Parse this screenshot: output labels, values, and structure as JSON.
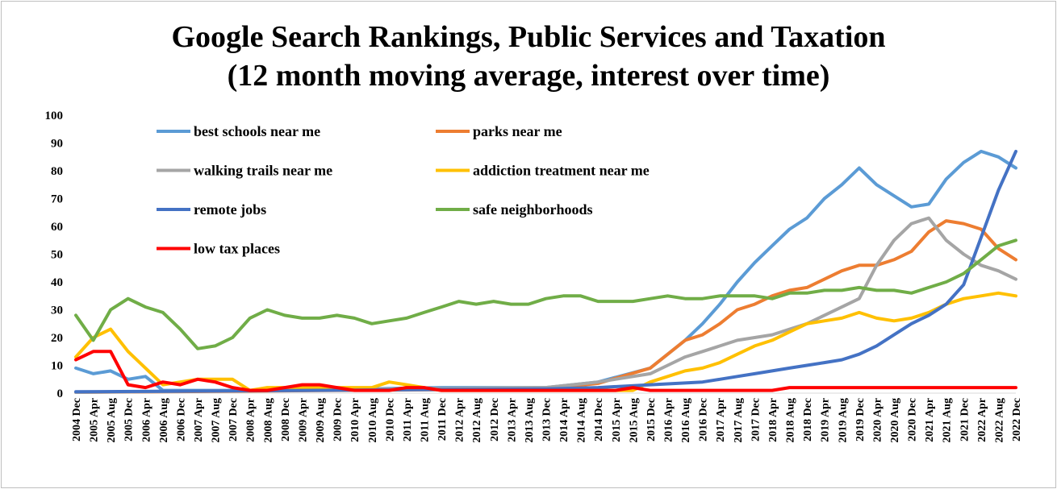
{
  "chart_data": {
    "type": "line",
    "title": "Google Search Rankings, Public Services and Taxation",
    "subtitle": "(12 month moving average, interest over time)",
    "xlabel": "",
    "ylabel": "",
    "ylim": [
      0,
      100
    ],
    "y_ticks": [
      0,
      10,
      20,
      30,
      40,
      50,
      60,
      70,
      80,
      90,
      100
    ],
    "grid": false,
    "legend_position": "top-left inside plot",
    "x_start": "2004 Dec",
    "x_end": "2022 Dec",
    "x_step_months": 4,
    "x_tick_labels": [
      "2004 Dec",
      "2005 Apr",
      "2005 Aug",
      "2005 Dec",
      "2006 Apr",
      "2006 Aug",
      "2006 Dec",
      "2007 Apr",
      "2007 Aug",
      "2007 Dec",
      "2008 Apr",
      "2008 Aug",
      "2008 Dec",
      "2009 Apr",
      "2009 Aug",
      "2009 Dec",
      "2010 Apr",
      "2010 Aug",
      "2010 Dec",
      "2011 Apr",
      "2011 Aug",
      "2011 Dec",
      "2012 Apr",
      "2012 Aug",
      "2012 Dec",
      "2013 Apr",
      "2013 Aug",
      "2013 Dec",
      "2014 Apr",
      "2014 Aug",
      "2014 Dec",
      "2015 Apr",
      "2015 Aug",
      "2015 Dec",
      "2016 Apr",
      "2016 Aug",
      "2016 Dec",
      "2017 Apr",
      "2017 Aug",
      "2017 Dec",
      "2018 Apr",
      "2018 Aug",
      "2018 Dec",
      "2019 Apr",
      "2019 Aug",
      "2019 Dec",
      "2020 Apr",
      "2020 Aug",
      "2020 Dec",
      "2021 Apr",
      "2021 Aug",
      "2021 Dec",
      "2022 Apr",
      "2022 Aug",
      "2022 Dec"
    ],
    "series": [
      {
        "name": "best schools near me",
        "color": "#5B9BD5",
        "points": [
          [
            "2004 Dec",
            9
          ],
          [
            "2005 Apr",
            7
          ],
          [
            "2005 Aug",
            8
          ],
          [
            "2005 Dec",
            5
          ],
          [
            "2006 Apr",
            6
          ],
          [
            "2006 Aug",
            1
          ],
          [
            "2006 Dec",
            1
          ],
          [
            "2007 Apr",
            1
          ],
          [
            "2008 Dec",
            1
          ],
          [
            "2011 Dec",
            2
          ],
          [
            "2013 Dec",
            2
          ],
          [
            "2014 Dec",
            4
          ],
          [
            "2015 Dec",
            9
          ],
          [
            "2016 Apr",
            14
          ],
          [
            "2016 Aug",
            19
          ],
          [
            "2016 Dec",
            25
          ],
          [
            "2017 Apr",
            32
          ],
          [
            "2017 Aug",
            40
          ],
          [
            "2017 Dec",
            47
          ],
          [
            "2018 Apr",
            53
          ],
          [
            "2018 Aug",
            59
          ],
          [
            "2018 Dec",
            63
          ],
          [
            "2019 Apr",
            70
          ],
          [
            "2019 Aug",
            75
          ],
          [
            "2019 Dec",
            81
          ],
          [
            "2020 Apr",
            75
          ],
          [
            "2020 Aug",
            71
          ],
          [
            "2020 Dec",
            67
          ],
          [
            "2021 Apr",
            68
          ],
          [
            "2021 Aug",
            77
          ],
          [
            "2021 Dec",
            83
          ],
          [
            "2022 Apr",
            87
          ],
          [
            "2022 Aug",
            85
          ],
          [
            "2022 Dec",
            81
          ]
        ]
      },
      {
        "name": "parks near me",
        "color": "#ED7D31",
        "points": [
          [
            "2004 Dec",
            0.3
          ],
          [
            "2013 Dec",
            1.5
          ],
          [
            "2014 Dec",
            3.5
          ],
          [
            "2015 Dec",
            9
          ],
          [
            "2016 Apr",
            14
          ],
          [
            "2016 Aug",
            19
          ],
          [
            "2016 Dec",
            21
          ],
          [
            "2017 Apr",
            25
          ],
          [
            "2017 Aug",
            30
          ],
          [
            "2017 Dec",
            32
          ],
          [
            "2018 Apr",
            35
          ],
          [
            "2018 Aug",
            37
          ],
          [
            "2018 Dec",
            38
          ],
          [
            "2019 Apr",
            41
          ],
          [
            "2019 Aug",
            44
          ],
          [
            "2019 Dec",
            46
          ],
          [
            "2020 Apr",
            46
          ],
          [
            "2020 Aug",
            48
          ],
          [
            "2020 Dec",
            51
          ],
          [
            "2021 Apr",
            58
          ],
          [
            "2021 Aug",
            62
          ],
          [
            "2021 Dec",
            61
          ],
          [
            "2022 Apr",
            59
          ],
          [
            "2022 Aug",
            52
          ],
          [
            "2022 Dec",
            48
          ]
        ]
      },
      {
        "name": "walking trails near me",
        "color": "#A5A5A5",
        "points": [
          [
            "2004 Dec",
            0.3
          ],
          [
            "2013 Dec",
            2
          ],
          [
            "2014 Dec",
            4
          ],
          [
            "2015 Dec",
            7
          ],
          [
            "2016 Apr",
            10
          ],
          [
            "2016 Aug",
            13
          ],
          [
            "2016 Dec",
            15
          ],
          [
            "2017 Apr",
            17
          ],
          [
            "2017 Aug",
            19
          ],
          [
            "2017 Dec",
            20
          ],
          [
            "2018 Apr",
            21
          ],
          [
            "2018 Aug",
            23
          ],
          [
            "2018 Dec",
            25
          ],
          [
            "2019 Apr",
            28
          ],
          [
            "2019 Aug",
            31
          ],
          [
            "2019 Dec",
            34
          ],
          [
            "2020 Apr",
            46
          ],
          [
            "2020 Aug",
            55
          ],
          [
            "2020 Dec",
            61
          ],
          [
            "2021 Apr",
            63
          ],
          [
            "2021 Aug",
            55
          ],
          [
            "2021 Dec",
            50
          ],
          [
            "2022 Apr",
            46
          ],
          [
            "2022 Aug",
            44
          ],
          [
            "2022 Dec",
            41
          ]
        ]
      },
      {
        "name": "addiction treatment near me",
        "color": "#FFC000",
        "points": [
          [
            "2004 Dec",
            13
          ],
          [
            "2005 Apr",
            20
          ],
          [
            "2005 Aug",
            23
          ],
          [
            "2005 Dec",
            15
          ],
          [
            "2006 Apr",
            9
          ],
          [
            "2006 Aug",
            3
          ],
          [
            "2006 Dec",
            4
          ],
          [
            "2007 Apr",
            5
          ],
          [
            "2007 Aug",
            5
          ],
          [
            "2007 Dec",
            5
          ],
          [
            "2008 Apr",
            1
          ],
          [
            "2008 Aug",
            2
          ],
          [
            "2008 Dec",
            2
          ],
          [
            "2009 Apr",
            2
          ],
          [
            "2009 Aug",
            2
          ],
          [
            "2009 Dec",
            2
          ],
          [
            "2010 Apr",
            2
          ],
          [
            "2010 Aug",
            2
          ],
          [
            "2010 Dec",
            4
          ],
          [
            "2011 Apr",
            3
          ],
          [
            "2011 Aug",
            2
          ],
          [
            "2011 Dec",
            1
          ],
          [
            "2013 Dec",
            1
          ],
          [
            "2014 Aug",
            1
          ],
          [
            "2014 Dec",
            1
          ],
          [
            "2015 Apr",
            1
          ],
          [
            "2015 Aug",
            1
          ],
          [
            "2015 Dec",
            4
          ],
          [
            "2016 Apr",
            6
          ],
          [
            "2016 Aug",
            8
          ],
          [
            "2016 Dec",
            9
          ],
          [
            "2017 Apr",
            11
          ],
          [
            "2017 Aug",
            14
          ],
          [
            "2017 Dec",
            17
          ],
          [
            "2018 Apr",
            19
          ],
          [
            "2018 Aug",
            22
          ],
          [
            "2018 Dec",
            25
          ],
          [
            "2019 Apr",
            26
          ],
          [
            "2019 Aug",
            27
          ],
          [
            "2019 Dec",
            29
          ],
          [
            "2020 Apr",
            27
          ],
          [
            "2020 Aug",
            26
          ],
          [
            "2020 Dec",
            27
          ],
          [
            "2021 Apr",
            29
          ],
          [
            "2021 Aug",
            32
          ],
          [
            "2021 Dec",
            34
          ],
          [
            "2022 Apr",
            35
          ],
          [
            "2022 Aug",
            36
          ],
          [
            "2022 Dec",
            35
          ]
        ]
      },
      {
        "name": "remote jobs",
        "color": "#4472C4",
        "points": [
          [
            "2004 Dec",
            0.5
          ],
          [
            "2013 Dec",
            1.5
          ],
          [
            "2014 Dec",
            2
          ],
          [
            "2015 Dec",
            3
          ],
          [
            "2016 Dec",
            4
          ],
          [
            "2017 Apr",
            5
          ],
          [
            "2017 Aug",
            6
          ],
          [
            "2017 Dec",
            7
          ],
          [
            "2018 Apr",
            8
          ],
          [
            "2018 Aug",
            9
          ],
          [
            "2018 Dec",
            10
          ],
          [
            "2019 Apr",
            11
          ],
          [
            "2019 Aug",
            12
          ],
          [
            "2019 Dec",
            14
          ],
          [
            "2020 Apr",
            17
          ],
          [
            "2020 Aug",
            21
          ],
          [
            "2020 Dec",
            25
          ],
          [
            "2021 Apr",
            28
          ],
          [
            "2021 Aug",
            32
          ],
          [
            "2021 Dec",
            39
          ],
          [
            "2022 Apr",
            56
          ],
          [
            "2022 Aug",
            73
          ],
          [
            "2022 Dec",
            87
          ]
        ]
      },
      {
        "name": "safe neighborhoods",
        "color": "#70AD47",
        "points": [
          [
            "2004 Dec",
            28
          ],
          [
            "2005 Apr",
            19
          ],
          [
            "2005 Aug",
            30
          ],
          [
            "2005 Dec",
            34
          ],
          [
            "2006 Apr",
            31
          ],
          [
            "2006 Aug",
            29
          ],
          [
            "2006 Dec",
            23
          ],
          [
            "2007 Apr",
            16
          ],
          [
            "2007 Aug",
            17
          ],
          [
            "2007 Dec",
            20
          ],
          [
            "2008 Apr",
            27
          ],
          [
            "2008 Aug",
            30
          ],
          [
            "2008 Dec",
            28
          ],
          [
            "2009 Apr",
            27
          ],
          [
            "2009 Aug",
            27
          ],
          [
            "2009 Dec",
            28
          ],
          [
            "2010 Apr",
            27
          ],
          [
            "2010 Aug",
            25
          ],
          [
            "2010 Dec",
            26
          ],
          [
            "2011 Apr",
            27
          ],
          [
            "2011 Aug",
            29
          ],
          [
            "2011 Dec",
            31
          ],
          [
            "2012 Apr",
            33
          ],
          [
            "2012 Aug",
            32
          ],
          [
            "2012 Dec",
            33
          ],
          [
            "2013 Apr",
            32
          ],
          [
            "2013 Aug",
            32
          ],
          [
            "2013 Dec",
            34
          ],
          [
            "2014 Apr",
            35
          ],
          [
            "2014 Aug",
            35
          ],
          [
            "2014 Dec",
            33
          ],
          [
            "2015 Apr",
            33
          ],
          [
            "2015 Aug",
            33
          ],
          [
            "2015 Dec",
            34
          ],
          [
            "2016 Apr",
            35
          ],
          [
            "2016 Aug",
            34
          ],
          [
            "2016 Dec",
            34
          ],
          [
            "2017 Apr",
            35
          ],
          [
            "2017 Aug",
            35
          ],
          [
            "2017 Dec",
            35
          ],
          [
            "2018 Apr",
            34
          ],
          [
            "2018 Aug",
            36
          ],
          [
            "2018 Dec",
            36
          ],
          [
            "2019 Apr",
            37
          ],
          [
            "2019 Aug",
            37
          ],
          [
            "2019 Dec",
            38
          ],
          [
            "2020 Apr",
            37
          ],
          [
            "2020 Aug",
            37
          ],
          [
            "2020 Dec",
            36
          ],
          [
            "2021 Apr",
            38
          ],
          [
            "2021 Aug",
            40
          ],
          [
            "2021 Dec",
            43
          ],
          [
            "2022 Apr",
            48
          ],
          [
            "2022 Aug",
            53
          ],
          [
            "2022 Dec",
            55
          ]
        ]
      },
      {
        "name": "low tax places",
        "color": "#FF0000",
        "points": [
          [
            "2004 Dec",
            12
          ],
          [
            "2005 Apr",
            15
          ],
          [
            "2005 Aug",
            15
          ],
          [
            "2005 Dec",
            3
          ],
          [
            "2006 Apr",
            2
          ],
          [
            "2006 Aug",
            4
          ],
          [
            "2006 Dec",
            3
          ],
          [
            "2007 Apr",
            5
          ],
          [
            "2007 Aug",
            4
          ],
          [
            "2007 Dec",
            2
          ],
          [
            "2008 Apr",
            1
          ],
          [
            "2008 Aug",
            1
          ],
          [
            "2008 Dec",
            2
          ],
          [
            "2009 Apr",
            3
          ],
          [
            "2009 Aug",
            3
          ],
          [
            "2009 Dec",
            2
          ],
          [
            "2010 Apr",
            1
          ],
          [
            "2010 Aug",
            1
          ],
          [
            "2010 Dec",
            1
          ],
          [
            "2011 Apr",
            2
          ],
          [
            "2011 Aug",
            2
          ],
          [
            "2011 Dec",
            1
          ],
          [
            "2012 Dec",
            1
          ],
          [
            "2013 Dec",
            1
          ],
          [
            "2014 Aug",
            1
          ],
          [
            "2014 Dec",
            1
          ],
          [
            "2015 Apr",
            1
          ],
          [
            "2015 Aug",
            2
          ],
          [
            "2015 Dec",
            1
          ],
          [
            "2016 Dec",
            1
          ],
          [
            "2017 Apr",
            1
          ],
          [
            "2017 Aug",
            1
          ],
          [
            "2017 Dec",
            1
          ],
          [
            "2018 Apr",
            1
          ],
          [
            "2018 Aug",
            2
          ],
          [
            "2018 Dec",
            2
          ],
          [
            "2019 Apr",
            2
          ],
          [
            "2019 Aug",
            2
          ],
          [
            "2019 Dec",
            2
          ],
          [
            "2020 Apr",
            2
          ],
          [
            "2020 Aug",
            2
          ],
          [
            "2020 Dec",
            2
          ],
          [
            "2021 Apr",
            2
          ],
          [
            "2021 Aug",
            2
          ],
          [
            "2021 Dec",
            2
          ],
          [
            "2022 Apr",
            2
          ],
          [
            "2022 Aug",
            2
          ],
          [
            "2022 Dec",
            2
          ]
        ]
      }
    ]
  }
}
